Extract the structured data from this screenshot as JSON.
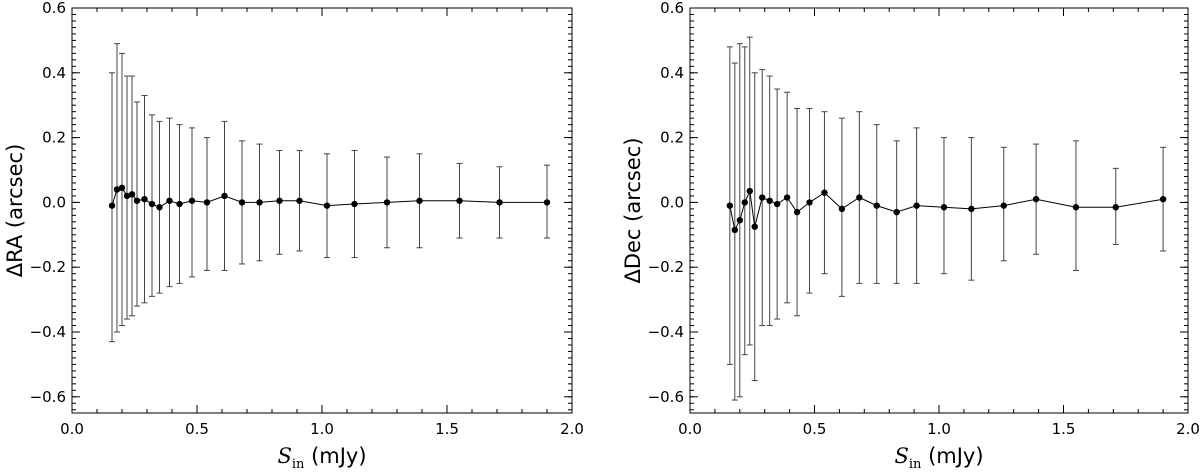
{
  "chart_data": [
    {
      "type": "scatter",
      "error_bars": true,
      "ylabel": "ΔRA (arcsec)",
      "xlabel": {
        "symbol": "S",
        "subscript": "in",
        "unit": " (mJy)"
      },
      "xlim": [
        0.0,
        2.0
      ],
      "ylim": [
        -0.65,
        0.6
      ],
      "x_ticks": [
        "0.0",
        "0.5",
        "1.0",
        "1.5",
        "2.0"
      ],
      "y_ticks": [
        "−0.6",
        "−0.4",
        "−0.2",
        "0.0",
        "0.2",
        "0.4",
        "0.6"
      ],
      "points": [
        {
          "x": 0.16,
          "y": -0.01,
          "lo": -0.43,
          "hi": 0.4
        },
        {
          "x": 0.18,
          "y": 0.04,
          "lo": -0.4,
          "hi": 0.49
        },
        {
          "x": 0.2,
          "y": 0.045,
          "lo": -0.38,
          "hi": 0.46
        },
        {
          "x": 0.22,
          "y": 0.02,
          "lo": -0.36,
          "hi": 0.39
        },
        {
          "x": 0.24,
          "y": 0.025,
          "lo": -0.35,
          "hi": 0.39
        },
        {
          "x": 0.26,
          "y": 0.005,
          "lo": -0.32,
          "hi": 0.31
        },
        {
          "x": 0.29,
          "y": 0.01,
          "lo": -0.31,
          "hi": 0.33
        },
        {
          "x": 0.32,
          "y": -0.005,
          "lo": -0.29,
          "hi": 0.27
        },
        {
          "x": 0.35,
          "y": -0.015,
          "lo": -0.28,
          "hi": 0.25
        },
        {
          "x": 0.39,
          "y": 0.005,
          "lo": -0.26,
          "hi": 0.26
        },
        {
          "x": 0.43,
          "y": -0.005,
          "lo": -0.25,
          "hi": 0.24
        },
        {
          "x": 0.48,
          "y": 0.005,
          "lo": -0.23,
          "hi": 0.23
        },
        {
          "x": 0.54,
          "y": 0.0,
          "lo": -0.21,
          "hi": 0.2
        },
        {
          "x": 0.61,
          "y": 0.02,
          "lo": -0.21,
          "hi": 0.25
        },
        {
          "x": 0.68,
          "y": 0.0,
          "lo": -0.19,
          "hi": 0.19
        },
        {
          "x": 0.75,
          "y": 0.0,
          "lo": -0.18,
          "hi": 0.18
        },
        {
          "x": 0.83,
          "y": 0.005,
          "lo": -0.16,
          "hi": 0.16
        },
        {
          "x": 0.91,
          "y": 0.005,
          "lo": -0.15,
          "hi": 0.16
        },
        {
          "x": 1.02,
          "y": -0.01,
          "lo": -0.17,
          "hi": 0.15
        },
        {
          "x": 1.13,
          "y": -0.005,
          "lo": -0.17,
          "hi": 0.16
        },
        {
          "x": 1.26,
          "y": 0.0,
          "lo": -0.14,
          "hi": 0.14
        },
        {
          "x": 1.39,
          "y": 0.005,
          "lo": -0.14,
          "hi": 0.15
        },
        {
          "x": 1.55,
          "y": 0.005,
          "lo": -0.11,
          "hi": 0.12
        },
        {
          "x": 1.71,
          "y": 0.0,
          "lo": -0.11,
          "hi": 0.11
        },
        {
          "x": 1.9,
          "y": 0.0,
          "lo": -0.11,
          "hi": 0.115
        }
      ]
    },
    {
      "type": "scatter",
      "error_bars": true,
      "ylabel": "ΔDec (arcsec)",
      "xlabel": {
        "symbol": "S",
        "subscript": "in",
        "unit": " (mJy)"
      },
      "xlim": [
        0.0,
        2.0
      ],
      "ylim": [
        -0.65,
        0.6
      ],
      "x_ticks": [
        "0.0",
        "0.5",
        "1.0",
        "1.5",
        "2.0"
      ],
      "y_ticks": [
        "−0.6",
        "−0.4",
        "−0.2",
        "0.0",
        "0.2",
        "0.4",
        "0.6"
      ],
      "points": [
        {
          "x": 0.16,
          "y": -0.01,
          "lo": -0.5,
          "hi": 0.48
        },
        {
          "x": 0.18,
          "y": -0.085,
          "lo": -0.61,
          "hi": 0.43
        },
        {
          "x": 0.2,
          "y": -0.055,
          "lo": -0.6,
          "hi": 0.49
        },
        {
          "x": 0.22,
          "y": 0.0,
          "lo": -0.47,
          "hi": 0.48
        },
        {
          "x": 0.24,
          "y": 0.035,
          "lo": -0.44,
          "hi": 0.51
        },
        {
          "x": 0.26,
          "y": -0.075,
          "lo": -0.55,
          "hi": 0.4
        },
        {
          "x": 0.29,
          "y": 0.015,
          "lo": -0.38,
          "hi": 0.41
        },
        {
          "x": 0.32,
          "y": 0.005,
          "lo": -0.38,
          "hi": 0.39
        },
        {
          "x": 0.35,
          "y": -0.005,
          "lo": -0.36,
          "hi": 0.35
        },
        {
          "x": 0.39,
          "y": 0.015,
          "lo": -0.31,
          "hi": 0.34
        },
        {
          "x": 0.43,
          "y": -0.03,
          "lo": -0.35,
          "hi": 0.29
        },
        {
          "x": 0.48,
          "y": 0.0,
          "lo": -0.28,
          "hi": 0.29
        },
        {
          "x": 0.54,
          "y": 0.03,
          "lo": -0.22,
          "hi": 0.28
        },
        {
          "x": 0.61,
          "y": -0.02,
          "lo": -0.29,
          "hi": 0.26
        },
        {
          "x": 0.68,
          "y": 0.015,
          "lo": -0.25,
          "hi": 0.28
        },
        {
          "x": 0.75,
          "y": -0.01,
          "lo": -0.25,
          "hi": 0.24
        },
        {
          "x": 0.83,
          "y": -0.03,
          "lo": -0.25,
          "hi": 0.19
        },
        {
          "x": 0.91,
          "y": -0.01,
          "lo": -0.25,
          "hi": 0.23
        },
        {
          "x": 1.02,
          "y": -0.015,
          "lo": -0.22,
          "hi": 0.2
        },
        {
          "x": 1.13,
          "y": -0.02,
          "lo": -0.24,
          "hi": 0.2
        },
        {
          "x": 1.26,
          "y": -0.01,
          "lo": -0.18,
          "hi": 0.17
        },
        {
          "x": 1.39,
          "y": 0.01,
          "lo": -0.16,
          "hi": 0.18
        },
        {
          "x": 1.55,
          "y": -0.015,
          "lo": -0.21,
          "hi": 0.19
        },
        {
          "x": 1.71,
          "y": -0.015,
          "lo": -0.13,
          "hi": 0.105
        },
        {
          "x": 1.9,
          "y": 0.01,
          "lo": -0.15,
          "hi": 0.17
        }
      ]
    }
  ]
}
